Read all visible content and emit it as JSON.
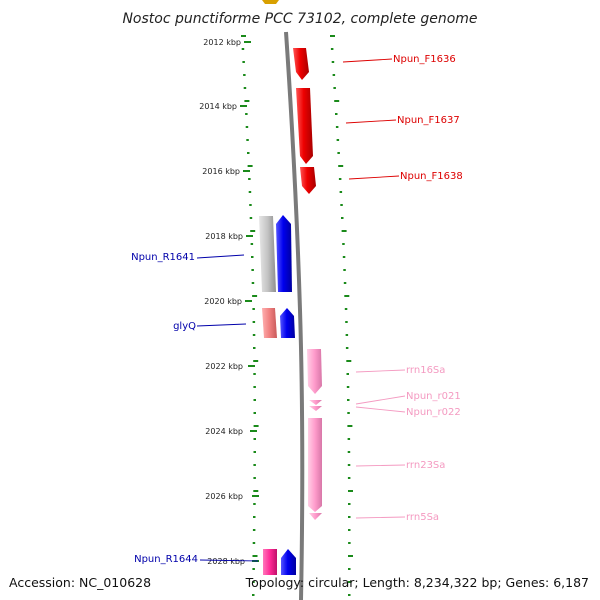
{
  "title": "Nostoc punctiforme PCC 73102, complete genome",
  "footer": {
    "accession": "Accession: NC_010628",
    "topology": "Topology: circular; Length: 8,234,322 bp; Genes: 6,187"
  },
  "ticks": [
    "2012 kbp",
    "2014 kbp",
    "2016 kbp",
    "2018 kbp",
    "2020 kbp",
    "2022 kbp",
    "2024 kbp",
    "2026 kbp",
    "2028 kbp"
  ],
  "colors": {
    "backbone": "#808080",
    "tick_green": "#1a8a1a",
    "cds_red": "#ee1111",
    "cds_blue": "#1111ee",
    "pseudo_gray": "#bdbdbd",
    "trna_pink": "#f08080",
    "rrna_pink": "#ff99cc",
    "ncrna_magenta": "#ff3399"
  },
  "genes": [
    {
      "name": "Npun_F1636",
      "color": "#dd0000"
    },
    {
      "name": "Npun_F1637",
      "color": "#dd0000"
    },
    {
      "name": "Npun_F1638",
      "color": "#dd0000"
    },
    {
      "name": "Npun_R1641",
      "color": "#0000aa"
    },
    {
      "name": "glyQ",
      "color": "#0000aa"
    },
    {
      "name": "rrn16Sa",
      "color": "#f49ac1"
    },
    {
      "name": "Npun_r021",
      "color": "#f49ac1"
    },
    {
      "name": "Npun_r022",
      "color": "#f49ac1"
    },
    {
      "name": "rrn23Sa",
      "color": "#f49ac1"
    },
    {
      "name": "rrn5Sa",
      "color": "#f49ac1"
    },
    {
      "name": "Npun_R1644",
      "color": "#0000aa"
    }
  ]
}
